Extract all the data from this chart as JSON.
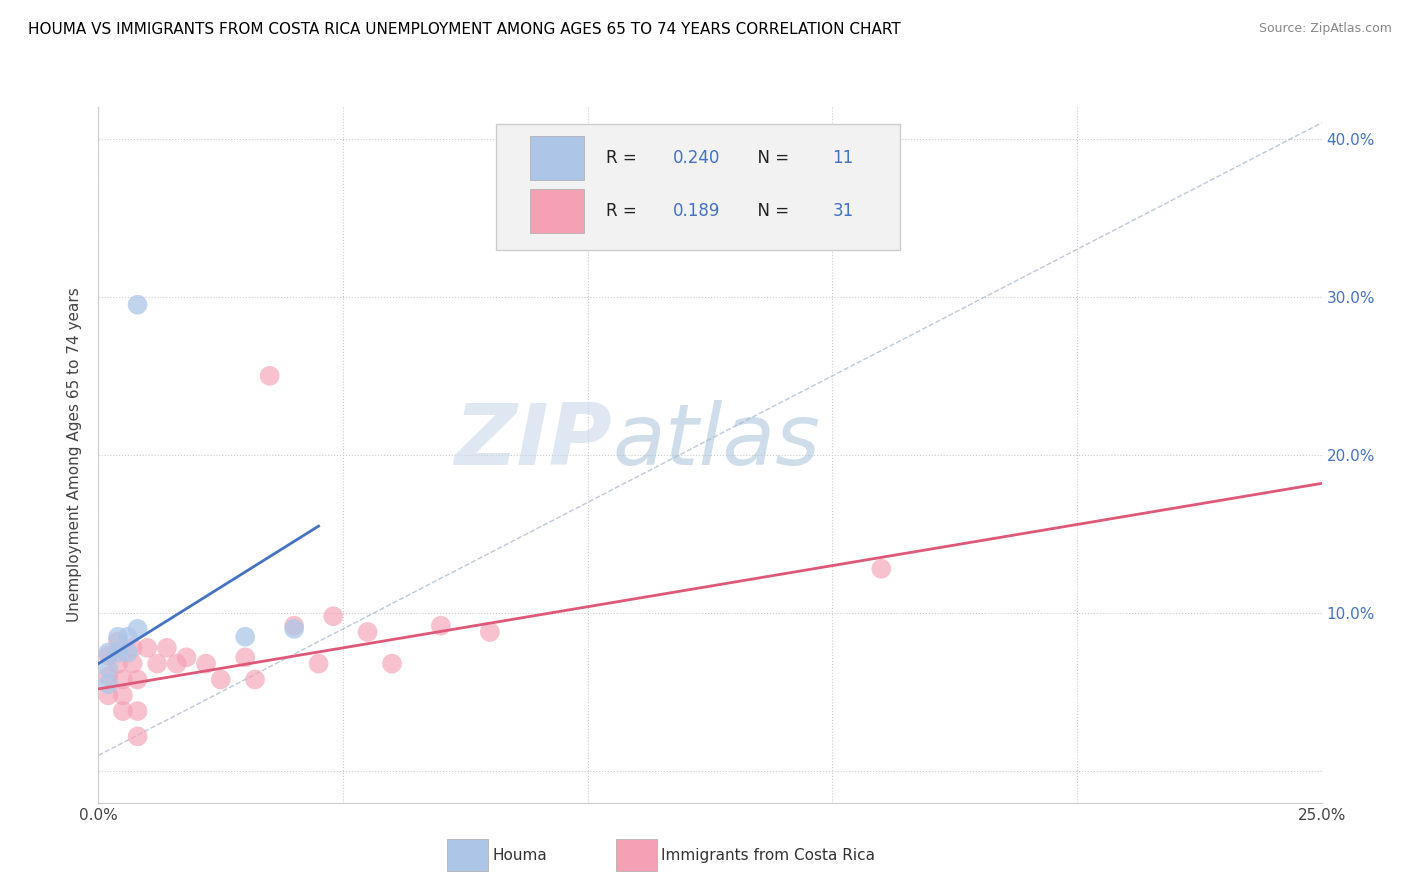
{
  "title": "HOUMA VS IMMIGRANTS FROM COSTA RICA UNEMPLOYMENT AMONG AGES 65 TO 74 YEARS CORRELATION CHART",
  "source": "Source: ZipAtlas.com",
  "ylabel": "Unemployment Among Ages 65 to 74 years",
  "xlim": [
    0.0,
    0.25
  ],
  "ylim": [
    -0.02,
    0.42
  ],
  "xticks": [
    0.0,
    0.05,
    0.1,
    0.15,
    0.2,
    0.25
  ],
  "xticklabels": [
    "0.0%",
    "",
    "",
    "",
    "",
    "25.0%"
  ],
  "yticks": [
    0.0,
    0.1,
    0.2,
    0.3,
    0.4
  ],
  "yticklabels": [
    "",
    "10.0%",
    "20.0%",
    "30.0%",
    "40.0%"
  ],
  "houma_R": 0.24,
  "houma_N": 11,
  "costa_rica_R": 0.189,
  "costa_rica_N": 31,
  "houma_color": "#adc6e8",
  "houma_line_color": "#4472c4",
  "costa_rica_color": "#f4a0b5",
  "costa_rica_line_color": "#e05878",
  "trend_line_color": "#aabbd0",
  "watermark_zip": "ZIP",
  "watermark_atlas": "atlas",
  "houma_points_x": [
    0.002,
    0.002,
    0.002,
    0.004,
    0.004,
    0.006,
    0.006,
    0.008,
    0.008,
    0.03,
    0.04
  ],
  "houma_points_y": [
    0.075,
    0.065,
    0.055,
    0.085,
    0.075,
    0.085,
    0.075,
    0.09,
    0.295,
    0.085,
    0.09
  ],
  "costa_rica_points_x": [
    0.002,
    0.002,
    0.002,
    0.004,
    0.004,
    0.005,
    0.005,
    0.005,
    0.007,
    0.007,
    0.008,
    0.008,
    0.01,
    0.012,
    0.014,
    0.016,
    0.018,
    0.022,
    0.025,
    0.03,
    0.032,
    0.035,
    0.04,
    0.045,
    0.048,
    0.055,
    0.06,
    0.07,
    0.08,
    0.16,
    0.008
  ],
  "costa_rica_points_y": [
    0.073,
    0.06,
    0.048,
    0.082,
    0.068,
    0.058,
    0.048,
    0.038,
    0.078,
    0.068,
    0.058,
    0.038,
    0.078,
    0.068,
    0.078,
    0.068,
    0.072,
    0.068,
    0.058,
    0.072,
    0.058,
    0.25,
    0.092,
    0.068,
    0.098,
    0.088,
    0.068,
    0.092,
    0.088,
    0.128,
    0.022
  ],
  "houma_trend_x": [
    0.0,
    0.045
  ],
  "houma_trend_y": [
    0.068,
    0.155
  ],
  "costa_rica_trend_x": [
    0.0,
    0.25
  ],
  "costa_rica_trend_y": [
    0.052,
    0.182
  ],
  "dashed_trend_x": [
    0.0,
    0.25
  ],
  "dashed_trend_y": [
    0.01,
    0.41
  ]
}
